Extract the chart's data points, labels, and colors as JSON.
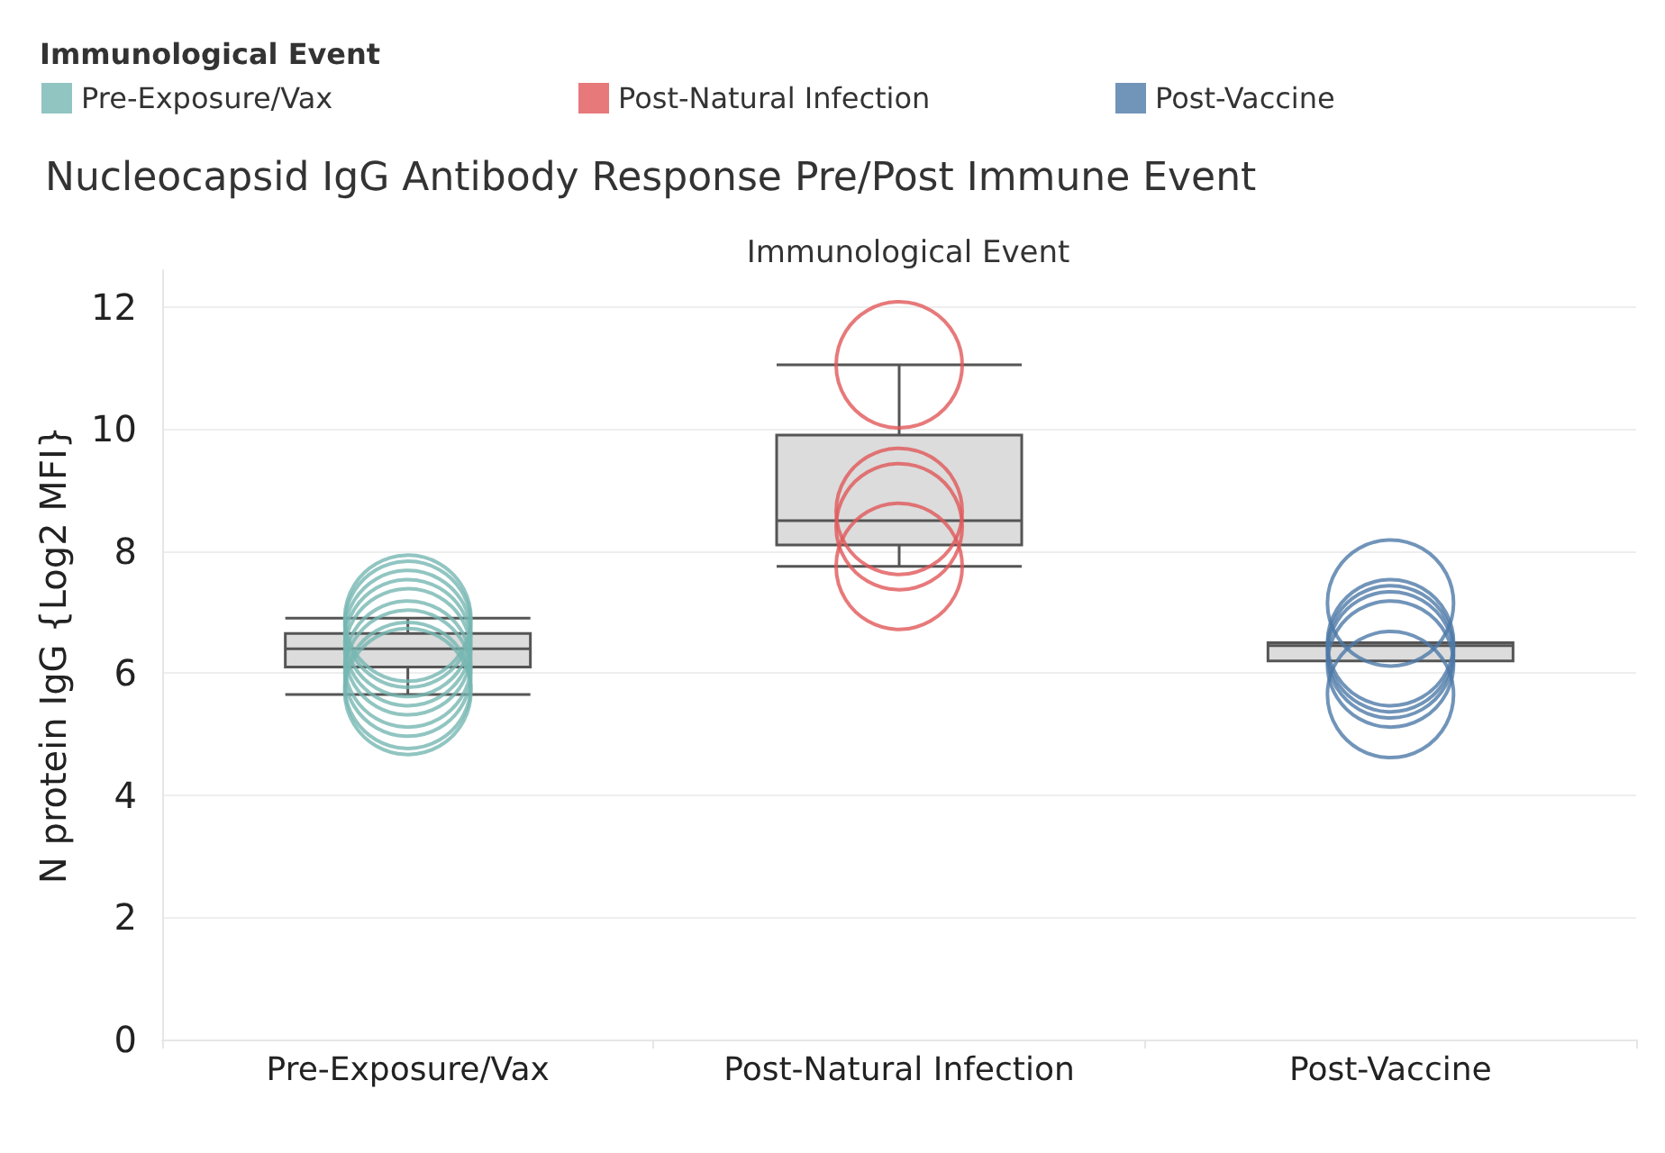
{
  "chart_data": {
    "type": "box",
    "title": "Nucleocapsid IgG Antibody Response Pre/Post Immune Event",
    "xlabel": "Immunological Event",
    "ylabel": "N protein IgG {Log2 MFI}",
    "legend_title": "Immunological Event",
    "categories": [
      "Pre-Exposure/Vax",
      "Post-Natural Infection",
      "Post-Vaccine"
    ],
    "boxes": [
      {
        "low": 5.65,
        "q1": 6.1,
        "median": 6.4,
        "q3": 6.65,
        "high": 6.9
      },
      {
        "low": 7.75,
        "q1": 8.1,
        "median": 8.5,
        "q3": 9.9,
        "high": 11.05
      },
      {
        "low": 6.2,
        "q1": 6.2,
        "median": 6.45,
        "q3": 6.5,
        "high": 6.5
      }
    ],
    "series": [
      {
        "name": "Pre-Exposure/Vax",
        "type": "scatter",
        "color": "#76b7b2",
        "x": [
          "Pre-Exposure/Vax",
          "Pre-Exposure/Vax",
          "Pre-Exposure/Vax",
          "Pre-Exposure/Vax",
          "Pre-Exposure/Vax",
          "Pre-Exposure/Vax",
          "Pre-Exposure/Vax",
          "Pre-Exposure/Vax",
          "Pre-Exposure/Vax"
        ],
        "values": [
          6.9,
          6.8,
          6.65,
          6.5,
          6.35,
          6.15,
          6.0,
          5.8,
          5.7
        ]
      },
      {
        "name": "Post-Natural Infection",
        "type": "scatter",
        "color": "#e15759",
        "x": [
          "Post-Natural Infection",
          "Post-Natural Infection",
          "Post-Natural Infection",
          "Post-Natural Infection"
        ],
        "values": [
          11.05,
          8.65,
          8.4,
          7.75
        ]
      },
      {
        "name": "Post-Vaccine",
        "type": "scatter",
        "color": "#4e79a7",
        "x": [
          "Post-Vaccine",
          "Post-Vaccine",
          "Post-Vaccine",
          "Post-Vaccine",
          "Post-Vaccine",
          "Post-Vaccine"
        ],
        "values": [
          7.15,
          6.5,
          6.4,
          6.3,
          6.15,
          5.65
        ]
      }
    ],
    "ylim": [
      0,
      12.6
    ],
    "yticks": [
      0,
      2,
      4,
      6,
      8,
      10,
      12
    ],
    "grid": "y",
    "legend": "top left",
    "marker": "circle"
  }
}
